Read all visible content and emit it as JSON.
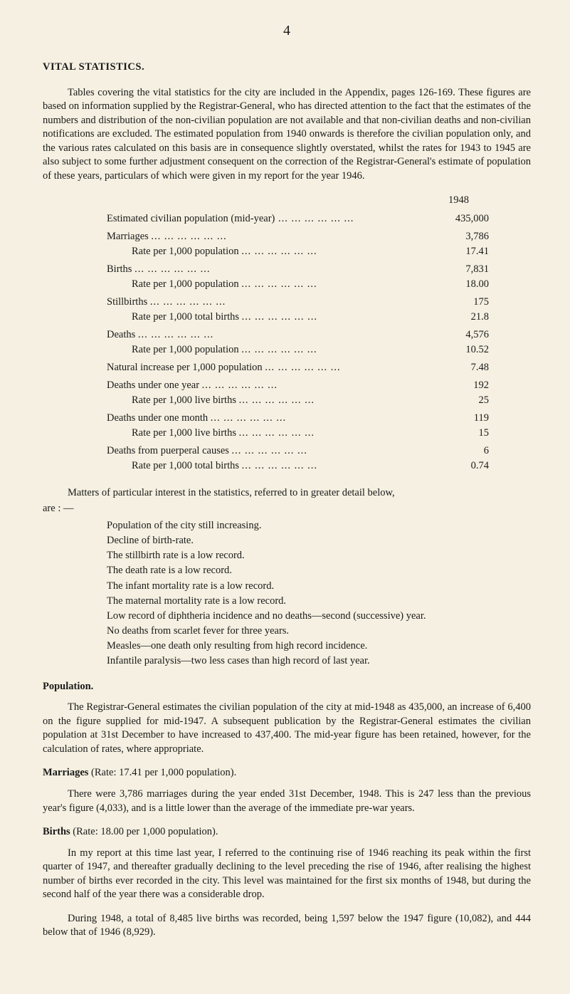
{
  "page_number": "4",
  "title": "VITAL STATISTICS.",
  "intro_paragraph": "Tables covering the vital statistics for the city are included in the Appendix, pages 126-169. These figures are based on information supplied by the Registrar-General, who has directed attention to the fact that the estimates of the numbers and distribution of the non-civilian population are not available and that non-civilian deaths and non-civilian notifications are excluded. The estimated population from 1940 onwards is therefore the civilian population only, and the various rates calculated on this basis are in consequence slightly overstated, whilst the rates for 1943 to 1945 are also subject to some further adjustment consequent on the correction of the Registrar-General's estimate of population of these years, particulars of which were given in my report for the year 1946.",
  "year": "1948",
  "stats": [
    {
      "label": "Estimated civilian population (mid-year)",
      "value": "435,000",
      "rate_label": null,
      "rate_value": null
    },
    {
      "label": "Marriages ",
      "value": "3,786",
      "rate_label": "Rate per 1,000 population ",
      "rate_value": "17.41"
    },
    {
      "label": "Births     ",
      "value": "7,831",
      "rate_label": "Rate per 1,000 population ",
      "rate_value": "18.00"
    },
    {
      "label": "Stillbirths ",
      "value": "175",
      "rate_label": "Rate per 1,000 total births ",
      "rate_value": "21.8"
    },
    {
      "label": "Deaths     ",
      "value": "4,576",
      "rate_label": "Rate per 1,000 population ",
      "rate_value": "10.52"
    },
    {
      "label": "Natural increase per 1,000 population ",
      "value": "7.48",
      "rate_label": null,
      "rate_value": null
    },
    {
      "label": "Deaths under one year ",
      "value": "192",
      "rate_label": "Rate per 1,000 live births ",
      "rate_value": "25"
    },
    {
      "label": "Deaths under one month ",
      "value": "119",
      "rate_label": "Rate per 1,000 live births ",
      "rate_value": "15"
    },
    {
      "label": "Deaths from puerperal causes ",
      "value": "6",
      "rate_label": "Rate per 1,000 total births ",
      "rate_value": "0.74"
    }
  ],
  "matters_intro": "Matters of particular interest in the statistics, referred to in greater detail below,",
  "are_line": "are : —",
  "bullets": [
    "Population of the city still increasing.",
    "Decline of birth-rate.",
    "The stillbirth rate is a low record.",
    "The death rate is a low record.",
    "The infant mortality rate is a low record.",
    "The maternal mortality rate is a low record.",
    "Low record of diphtheria incidence and no deaths—second (successive) year.",
    "No deaths from scarlet fever for three years.",
    "Measles—one death only resulting from high record incidence.",
    "Infantile paralysis—two less cases than high record of last year."
  ],
  "sections": [
    {
      "title": "Population.",
      "rate_text": null,
      "paragraphs": [
        "The Registrar-General estimates the civilian population of the city at mid-1948 as 435,000, an increase of 6,400 on the figure supplied for mid-1947. A subsequent publication by the Registrar-General estimates the civilian population at 31st December to have increased to 437,400. The mid-year figure has been retained, however, for the calculation of rates, where appropriate."
      ]
    },
    {
      "title": "Marriages",
      "rate_text": " (Rate: 17.41 per 1,000 population).",
      "paragraphs": [
        "There were 3,786 marriages during the year ended 31st December, 1948. This is 247 less than the previous year's figure (4,033), and is a little lower than the average of the immediate pre-war years."
      ]
    },
    {
      "title": "Births",
      "rate_text": " (Rate: 18.00 per 1,000 population).",
      "paragraphs": [
        "In my report at this time last year, I referred to the continuing rise of 1946 reaching its peak within the first quarter of 1947, and thereafter gradually declining to the level preceding the rise of 1946, after realising the highest number of births ever recorded in the city. This level was maintained for the first six months of 1948, but during the second half of the year there was a considerable drop.",
        "During 1948, a total of 8,485 live births was recorded, being 1,597 below the 1947 figure (10,082), and 444 below that of 1946 (8,929)."
      ]
    }
  ]
}
